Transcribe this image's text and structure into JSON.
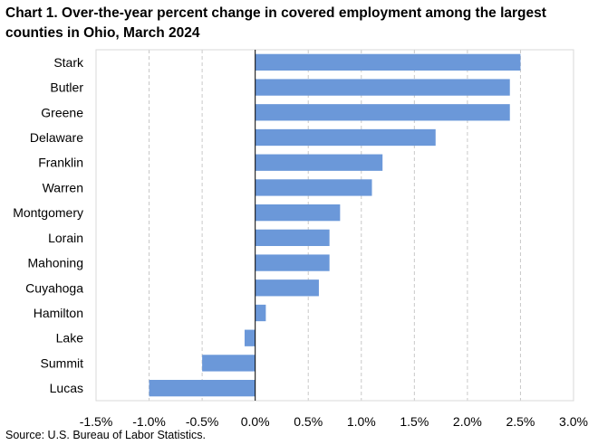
{
  "chart_data": {
    "type": "bar",
    "orientation": "horizontal",
    "title": "Chart 1. Over-the-year percent change in covered employment among the largest counties in Ohio, March 2024",
    "categories": [
      "Stark",
      "Butler",
      "Greene",
      "Delaware",
      "Franklin",
      "Warren",
      "Montgomery",
      "Lorain",
      "Mahoning",
      "Cuyahoga",
      "Hamilton",
      "Lake",
      "Summit",
      "Lucas"
    ],
    "values": [
      2.5,
      2.4,
      2.4,
      1.7,
      1.2,
      1.1,
      0.8,
      0.7,
      0.7,
      0.6,
      0.1,
      -0.1,
      -0.5,
      -1.0
    ],
    "xlim": [
      -1.5,
      3.0
    ],
    "xticks": [
      -1.5,
      -1.0,
      -0.5,
      0.0,
      0.5,
      1.0,
      1.5,
      2.0,
      2.5,
      3.0
    ],
    "xtick_labels": [
      "-1.5%",
      "-1.0%",
      "-0.5%",
      "0.0%",
      "0.5%",
      "1.0%",
      "1.5%",
      "2.0%",
      "2.5%",
      "3.0%"
    ],
    "grid": "vertical dashed",
    "bar_color": "#6b98d9",
    "source": "Source: U.S. Bureau of Labor Statistics."
  }
}
